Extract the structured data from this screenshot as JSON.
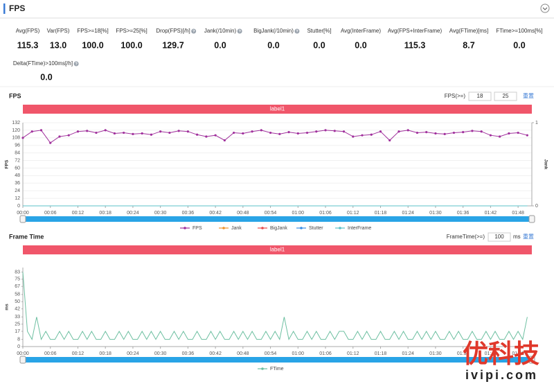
{
  "header": {
    "title": "FPS"
  },
  "stats": [
    {
      "label": "Avg(FPS)",
      "value": "115.3"
    },
    {
      "label": "Var(FPS)",
      "value": "13.0"
    },
    {
      "label": "FPS>=18[%]",
      "value": "100.0"
    },
    {
      "label": "FPS>=25[%]",
      "value": "100.0"
    },
    {
      "label": "Drop(FPS)[/h]",
      "value": "129.7",
      "help": true
    },
    {
      "label": "Jank(/10min)",
      "value": "0.0",
      "help": true
    },
    {
      "label": "BigJank(/10min)",
      "value": "0.0",
      "help": true
    },
    {
      "label": "Stutter[%]",
      "value": "0.0"
    },
    {
      "label": "Avg(InterFrame)",
      "value": "0.0"
    },
    {
      "label": "Avg(FPS+InterFrame)",
      "value": "115.3"
    },
    {
      "label": "Avg(FTime)[ms]",
      "value": "8.7"
    },
    {
      "label": "FTime>=100ms[%]",
      "value": "0.0"
    },
    {
      "label": "Delta(FTime)>100ms[/h]",
      "value": "0.0",
      "help": true
    }
  ],
  "fps_controls": {
    "label": "FPS(>=)",
    "inputs": [
      "18",
      "25"
    ],
    "reset": "重置"
  },
  "frametime_controls": {
    "label": "FrameTime(>=)",
    "inputs": [
      "100"
    ],
    "unit": "ms",
    "reset": "重置"
  },
  "chart_data": [
    {
      "type": "line",
      "title": "FPS",
      "band_label": "label1",
      "band_color": "#f0566a",
      "y_label": "FPS",
      "y2_label": "Jank",
      "grid": true,
      "x": [
        0,
        2,
        4,
        6,
        8,
        10,
        12,
        14,
        16,
        18,
        20,
        22,
        24,
        26,
        28,
        30,
        32,
        34,
        36,
        38,
        40,
        42,
        44,
        46,
        48,
        50,
        52,
        54,
        56,
        58,
        60,
        62,
        64,
        66,
        68,
        70,
        72,
        74,
        76,
        78,
        80,
        82,
        84,
        86,
        88,
        90,
        92,
        94,
        96,
        98,
        100,
        102,
        104,
        106,
        108,
        110
      ],
      "xlim": [
        0,
        111
      ],
      "xticks": [
        {
          "value": 0,
          "label": "00:00"
        },
        {
          "value": 6,
          "label": "00:06"
        },
        {
          "value": 12,
          "label": "00:12"
        },
        {
          "value": 18,
          "label": "00:18"
        },
        {
          "value": 24,
          "label": "00:24"
        },
        {
          "value": 30,
          "label": "00:30"
        },
        {
          "value": 36,
          "label": "00:36"
        },
        {
          "value": 42,
          "label": "00:42"
        },
        {
          "value": 48,
          "label": "00:48"
        },
        {
          "value": 54,
          "label": "00:54"
        },
        {
          "value": 60,
          "label": "01:00"
        },
        {
          "value": 66,
          "label": "01:06"
        },
        {
          "value": 72,
          "label": "01:12"
        },
        {
          "value": 78,
          "label": "01:18"
        },
        {
          "value": 84,
          "label": "01:24"
        },
        {
          "value": 90,
          "label": "01:30"
        },
        {
          "value": 96,
          "label": "01:36"
        },
        {
          "value": 102,
          "label": "01:42"
        },
        {
          "value": 108,
          "label": "01:48"
        }
      ],
      "ylim": [
        0,
        132
      ],
      "yticks": [
        0,
        12,
        24,
        36,
        48,
        60,
        72,
        84,
        96,
        108,
        120,
        132
      ],
      "y2lim": [
        0,
        1
      ],
      "y2ticks": [
        0,
        1
      ],
      "series": [
        {
          "name": "FPS",
          "color": "#a0309c",
          "marker": true,
          "values": [
            108,
            118,
            120,
            100,
            110,
            112,
            118,
            119,
            116,
            120,
            115,
            116,
            114,
            115,
            113,
            118,
            116,
            119,
            118,
            113,
            110,
            112,
            104,
            116,
            115,
            118,
            120,
            116,
            114,
            117,
            115,
            116,
            118,
            120,
            119,
            118,
            110,
            112,
            113,
            118,
            104,
            118,
            120,
            116,
            117,
            115,
            114,
            116,
            117,
            119,
            118,
            112,
            110,
            115,
            116,
            112
          ]
        },
        {
          "name": "Jank",
          "color": "#f0932b",
          "axis": "y2",
          "values": [
            0,
            0,
            0,
            0,
            0,
            0,
            0,
            0,
            0,
            0,
            0,
            0,
            0,
            0,
            0,
            0,
            0,
            0,
            0,
            0,
            0,
            0,
            0,
            0,
            0,
            0,
            0,
            0,
            0,
            0,
            0,
            0,
            0,
            0,
            0,
            0,
            0,
            0,
            0,
            0,
            0,
            0,
            0,
            0,
            0,
            0,
            0,
            0,
            0,
            0,
            0,
            0,
            0,
            0,
            0,
            0
          ]
        },
        {
          "name": "BigJank",
          "color": "#e84a4a",
          "axis": "y2",
          "values": [
            0,
            0,
            0,
            0,
            0,
            0,
            0,
            0,
            0,
            0,
            0,
            0,
            0,
            0,
            0,
            0,
            0,
            0,
            0,
            0,
            0,
            0,
            0,
            0,
            0,
            0,
            0,
            0,
            0,
            0,
            0,
            0,
            0,
            0,
            0,
            0,
            0,
            0,
            0,
            0,
            0,
            0,
            0,
            0,
            0,
            0,
            0,
            0,
            0,
            0,
            0,
            0,
            0,
            0,
            0,
            0
          ]
        },
        {
          "name": "Stutter",
          "color": "#3a8ee6",
          "axis": "y2",
          "values": [
            0,
            0,
            0,
            0,
            0,
            0,
            0,
            0,
            0,
            0,
            0,
            0,
            0,
            0,
            0,
            0,
            0,
            0,
            0,
            0,
            0,
            0,
            0,
            0,
            0,
            0,
            0,
            0,
            0,
            0,
            0,
            0,
            0,
            0,
            0,
            0,
            0,
            0,
            0,
            0,
            0,
            0,
            0,
            0,
            0,
            0,
            0,
            0,
            0,
            0,
            0,
            0,
            0,
            0,
            0,
            0
          ]
        },
        {
          "name": "InterFrame",
          "color": "#5bc0c8",
          "axis": "y2",
          "values": [
            0,
            0,
            0,
            0,
            0,
            0,
            0,
            0,
            0,
            0,
            0,
            0,
            0,
            0,
            0,
            0,
            0,
            0,
            0,
            0,
            0,
            0,
            0,
            0,
            0,
            0,
            0,
            0,
            0,
            0,
            0,
            0,
            0,
            0,
            0,
            0,
            0,
            0,
            0,
            0,
            0,
            0,
            0,
            0,
            0,
            0,
            0,
            0,
            0,
            0,
            0,
            0,
            0,
            0,
            0,
            0
          ]
        }
      ]
    },
    {
      "type": "line",
      "title": "Frame Time",
      "band_label": "label1",
      "band_color": "#f0566a",
      "y_label": "ms",
      "grid": false,
      "x": [
        0,
        1,
        2,
        3,
        4,
        5,
        6,
        7,
        8,
        9,
        10,
        11,
        12,
        13,
        14,
        15,
        16,
        17,
        18,
        19,
        20,
        21,
        22,
        23,
        24,
        25,
        26,
        27,
        28,
        29,
        30,
        31,
        32,
        33,
        34,
        35,
        36,
        37,
        38,
        39,
        40,
        41,
        42,
        43,
        44,
        45,
        46,
        47,
        48,
        49,
        50,
        51,
        52,
        53,
        54,
        55,
        56,
        57,
        58,
        59,
        60,
        61,
        62,
        63,
        64,
        65,
        66,
        67,
        68,
        69,
        70,
        71,
        72,
        73,
        74,
        75,
        76,
        77,
        78,
        79,
        80,
        81,
        82,
        83,
        84,
        85,
        86,
        87,
        88,
        89,
        90,
        91,
        92,
        93,
        94,
        95,
        96,
        97,
        98,
        99,
        100,
        101,
        102,
        103,
        104,
        105,
        106,
        107,
        108,
        109,
        110
      ],
      "xlim": [
        0,
        111
      ],
      "xticks": [
        {
          "value": 0,
          "label": "00:00"
        },
        {
          "value": 6,
          "label": "00:06"
        },
        {
          "value": 12,
          "label": "00:12"
        },
        {
          "value": 18,
          "label": "00:18"
        },
        {
          "value": 24,
          "label": "00:24"
        },
        {
          "value": 30,
          "label": "00:30"
        },
        {
          "value": 36,
          "label": "00:36"
        },
        {
          "value": 42,
          "label": "00:42"
        },
        {
          "value": 48,
          "label": "00:48"
        },
        {
          "value": 54,
          "label": "00:54"
        },
        {
          "value": 60,
          "label": "01:00"
        },
        {
          "value": 66,
          "label": "01:06"
        },
        {
          "value": 72,
          "label": "01:12"
        },
        {
          "value": 78,
          "label": "01:18"
        },
        {
          "value": 84,
          "label": "01:24"
        },
        {
          "value": 90,
          "label": "01:30"
        },
        {
          "value": 96,
          "label": "01:36"
        },
        {
          "value": 102,
          "label": "01:42"
        },
        {
          "value": 108,
          "label": "01:48"
        }
      ],
      "ylim": [
        0,
        88
      ],
      "yticks": [
        0,
        8,
        17,
        25,
        33,
        42,
        50,
        58,
        67,
        75,
        83
      ],
      "series": [
        {
          "name": "FTime",
          "color": "#6cbfa0",
          "values": [
            83,
            17,
            8,
            33,
            8,
            17,
            8,
            8,
            17,
            8,
            17,
            8,
            8,
            17,
            8,
            17,
            8,
            8,
            17,
            8,
            8,
            17,
            8,
            17,
            8,
            8,
            17,
            8,
            17,
            8,
            17,
            8,
            8,
            17,
            8,
            17,
            8,
            8,
            17,
            8,
            8,
            17,
            8,
            17,
            8,
            8,
            17,
            8,
            17,
            8,
            17,
            8,
            8,
            17,
            8,
            17,
            8,
            33,
            8,
            17,
            8,
            8,
            17,
            8,
            17,
            8,
            8,
            17,
            8,
            17,
            17,
            8,
            8,
            17,
            8,
            17,
            8,
            8,
            17,
            8,
            8,
            17,
            8,
            17,
            8,
            8,
            17,
            8,
            17,
            8,
            17,
            8,
            8,
            17,
            8,
            17,
            8,
            8,
            17,
            8,
            8,
            17,
            8,
            17,
            8,
            8,
            17,
            8,
            17,
            8,
            33
          ]
        }
      ]
    }
  ],
  "watermark": {
    "brand": "优科技",
    "site": "ivipi.com"
  }
}
